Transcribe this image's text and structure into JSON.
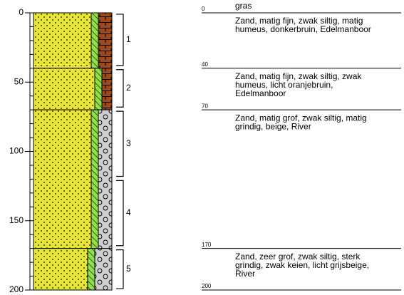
{
  "axis": {
    "lim": [
      0,
      200
    ],
    "ticks": [
      0,
      50,
      100,
      150,
      200
    ]
  },
  "boundaries": [
    0,
    40,
    70,
    170,
    200
  ],
  "descriptions": [
    [
      "gras"
    ],
    [
      "Zand, matig fijn, zwak siltig, matig",
      "humeus, donkerbruin, Edelmanboor"
    ],
    [
      "Zand, matig fijn, zwak siltig, zwak",
      "humeus, licht oranjebruin,",
      "Edelmanboor"
    ],
    [
      "Zand, matig grof, zwak siltig, matig",
      "grindig, beige, River"
    ],
    [
      "Zand, zeer grof, zwak siltig, sterk",
      "grindig, zwak keien, licht grijsbeige,",
      "River"
    ]
  ],
  "samples": [
    {
      "label": "1",
      "top": 1,
      "bottom": 38
    },
    {
      "label": "2",
      "top": 41,
      "bottom": 68
    },
    {
      "label": "3",
      "top": 71,
      "bottom": 118
    },
    {
      "label": "4",
      "top": 121,
      "bottom": 168
    },
    {
      "label": "5",
      "top": 171,
      "bottom": 199
    }
  ]
}
